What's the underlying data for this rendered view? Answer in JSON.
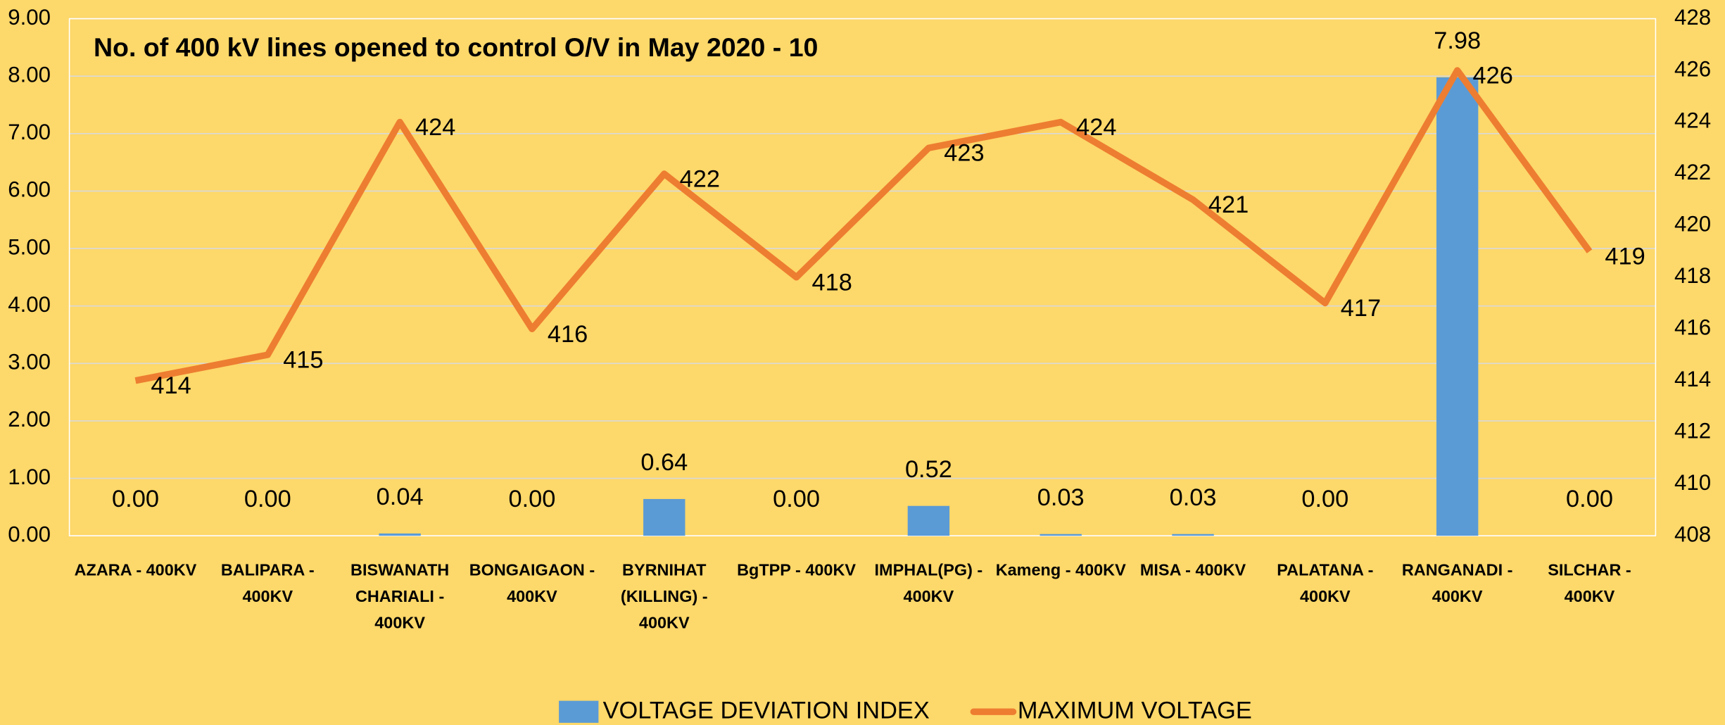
{
  "chart_data": {
    "type": "combo",
    "title": "No. of 400 kV lines opened to control O/V in May 2020 - 10",
    "categories": [
      "AZARA - 400KV",
      "BALIPARA - 400KV",
      "BISWANATH CHARIALI - 400KV",
      "BONGAIGAON - 400KV",
      "BYRNIHAT (KILLING) - 400KV",
      "BgTPP - 400KV",
      "IMPHAL(PG) - 400KV",
      "Kameng - 400KV",
      "MISA - 400KV",
      "PALATANA - 400KV",
      "RANGANADI - 400KV",
      "SILCHAR - 400KV"
    ],
    "series": [
      {
        "name": "VOLTAGE DEVIATION INDEX",
        "type": "bar",
        "color": "#5b9bd5",
        "values": [
          0,
          0,
          0.04,
          0,
          0.64,
          0,
          0.52,
          0.03,
          0.03,
          0,
          7.98,
          0
        ],
        "value_labels": [
          "0.00",
          "0.00",
          "0.04",
          "0.00",
          "0.64",
          "0.00",
          "0.52",
          "0.03",
          "0.03",
          "0.00",
          "7.98",
          "0.00"
        ]
      },
      {
        "name": "MAXIMUM VOLTAGE",
        "type": "line",
        "color": "#ed7d31",
        "axis": "y2",
        "values": [
          414,
          415,
          424,
          416,
          422,
          418,
          423,
          424,
          421,
          417,
          426,
          419
        ]
      }
    ],
    "ylim": [
      0,
      9
    ],
    "yticks": [
      {
        "value": 0,
        "label": "0.00"
      },
      {
        "value": 1,
        "label": "1.00"
      },
      {
        "value": 2,
        "label": "2.00"
      },
      {
        "value": 3,
        "label": "3.00"
      },
      {
        "value": 4,
        "label": "4.00"
      },
      {
        "value": 5,
        "label": "5.00"
      },
      {
        "value": 6,
        "label": "6.00"
      },
      {
        "value": 7,
        "label": "7.00"
      },
      {
        "value": 8,
        "label": "8.00"
      },
      {
        "value": 9,
        "label": "9.00"
      }
    ],
    "y2lim": [
      408,
      428
    ],
    "y2ticks": [
      408,
      410,
      412,
      414,
      416,
      418,
      420,
      422,
      424,
      426,
      428
    ],
    "grid": true,
    "legend": "bottom"
  }
}
